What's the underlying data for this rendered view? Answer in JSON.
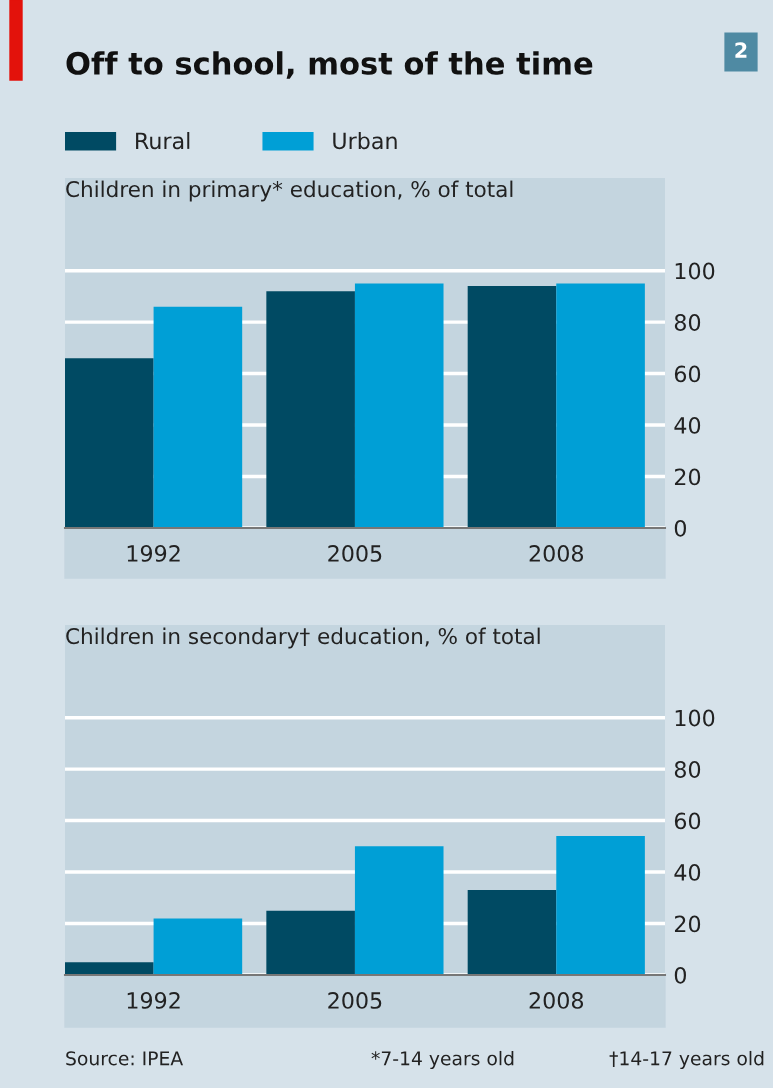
{
  "chart_data": [
    {
      "type": "bar",
      "title": "Off to school, most of the time",
      "subtitle": "Children in primary* education, % of total",
      "annotations": [
        "2"
      ],
      "categories": [
        "1992",
        "2005",
        "2008"
      ],
      "series": [
        {
          "name": "Rural",
          "color": "#004a63",
          "values": [
            66,
            92,
            94
          ]
        },
        {
          "name": "Urban",
          "color": "#009fd6",
          "values": [
            86,
            95,
            95
          ]
        }
      ],
      "ylim": [
        0,
        136
      ],
      "yticks": [
        0,
        20,
        40,
        60,
        80,
        100
      ],
      "grid": "y",
      "legend": "top left"
    },
    {
      "type": "bar",
      "title": "Children in secondary† education, % of total",
      "annotations": [
        "Source: IPEA",
        "*7-14 years old",
        "†14-17 years old"
      ],
      "categories": [
        "1992",
        "2005",
        "2008"
      ],
      "series": [
        {
          "color": "#004a63",
          "values": [
            5,
            25,
            33
          ]
        },
        {
          "color": "#009fd6",
          "values": [
            22,
            50,
            54
          ]
        }
      ],
      "ylim": [
        0,
        136
      ],
      "yticks": [
        0,
        20,
        40,
        60,
        80,
        100
      ],
      "grid": "y"
    }
  ]
}
